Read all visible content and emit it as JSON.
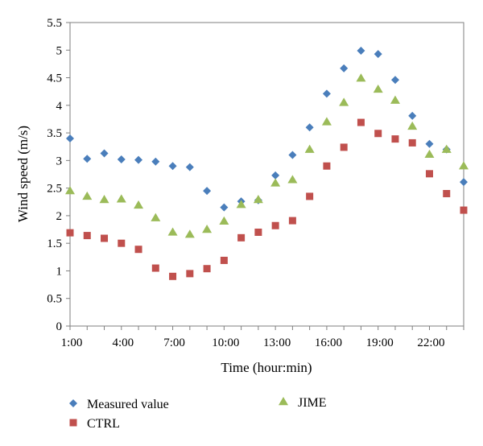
{
  "chart_data": {
    "type": "scatter",
    "title": "",
    "xlabel": "Time (hour:min)",
    "ylabel": "Wind speed (m/s)",
    "ylim": [
      0,
      5.5
    ],
    "y_ticks": [
      "0",
      "0.5",
      "1",
      "1.5",
      "2",
      "2.5",
      "3",
      "3.5",
      "4",
      "4.5",
      "5",
      "5.5"
    ],
    "x_range_hours": [
      1,
      24
    ],
    "x_ticks": [
      "1:00",
      "4:00",
      "7:00",
      "10:00",
      "13:00",
      "16:00",
      "19:00",
      "22:00"
    ],
    "x": [
      1,
      2,
      3,
      4,
      5,
      6,
      7,
      8,
      9,
      10,
      11,
      12,
      13,
      14,
      15,
      16,
      17,
      18,
      19,
      20,
      21,
      22,
      23,
      24
    ],
    "grid": false,
    "legend_position": "bottom",
    "series": [
      {
        "name": "Measured value",
        "marker": "diamond",
        "color": "#4a7ebb",
        "values": [
          3.4,
          3.03,
          3.13,
          3.02,
          3.01,
          2.98,
          2.9,
          2.88,
          2.45,
          2.15,
          2.26,
          2.28,
          2.73,
          3.1,
          3.6,
          4.21,
          4.67,
          4.99,
          4.93,
          4.46,
          3.81,
          3.3,
          3.2,
          2.61
        ]
      },
      {
        "name": "CTRL",
        "marker": "square",
        "color": "#c0504d",
        "values": [
          1.69,
          1.64,
          1.59,
          1.5,
          1.39,
          1.05,
          0.9,
          0.95,
          1.04,
          1.19,
          1.6,
          1.7,
          1.82,
          1.91,
          2.35,
          2.9,
          3.24,
          3.69,
          3.49,
          3.39,
          3.32,
          2.76,
          2.4,
          2.1
        ]
      },
      {
        "name": "JIME",
        "marker": "triangle",
        "color": "#9bbb59",
        "values": [
          2.45,
          2.35,
          2.29,
          2.3,
          2.19,
          1.96,
          1.7,
          1.66,
          1.75,
          1.9,
          2.2,
          2.29,
          2.59,
          2.65,
          3.2,
          3.7,
          4.05,
          4.49,
          4.29,
          4.09,
          3.62,
          3.11,
          3.2,
          2.9
        ]
      }
    ]
  }
}
